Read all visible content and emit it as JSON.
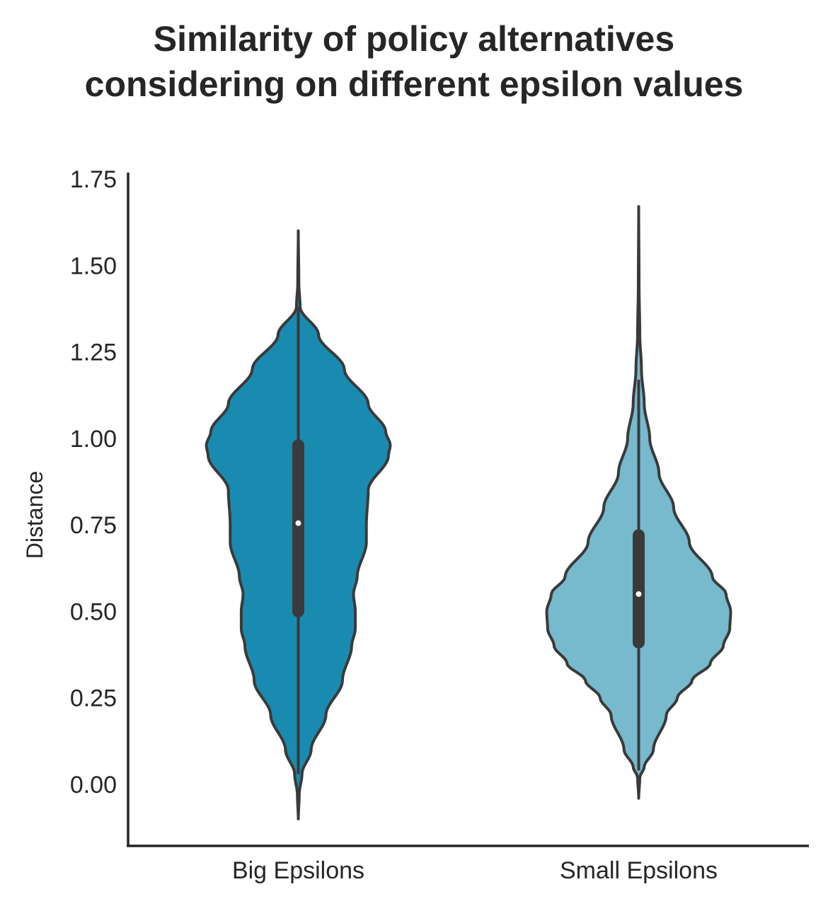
{
  "chart_data": {
    "type": "violin",
    "title_lines": [
      "Similarity of policy alternatives",
      "considering on different epsilon values"
    ],
    "xlabel": "",
    "ylabel": "Distance",
    "ylim": [
      -0.18,
      1.75
    ],
    "yticks": [
      0.0,
      0.25,
      0.5,
      0.75,
      1.0,
      1.25,
      1.5,
      1.75
    ],
    "ytick_labels": [
      "0.00",
      "0.25",
      "0.50",
      "0.75",
      "1.00",
      "1.25",
      "1.50",
      "1.75"
    ],
    "categories": [
      "Big Epsilons",
      "Small Epsilons"
    ],
    "grid": false,
    "series": [
      {
        "name": "Big Epsilons",
        "color": "#1a8bb0",
        "median": 0.755,
        "q1": 0.5,
        "q3": 0.98,
        "whisker_low": 0.03,
        "whisker_high": 1.38,
        "density_range": [
          -0.1,
          1.6
        ],
        "density_profile": [
          [
            -0.1,
            0.0
          ],
          [
            -0.03,
            0.01
          ],
          [
            0.03,
            0.04
          ],
          [
            0.1,
            0.14
          ],
          [
            0.2,
            0.3
          ],
          [
            0.3,
            0.48
          ],
          [
            0.4,
            0.58
          ],
          [
            0.45,
            0.62
          ],
          [
            0.5,
            0.62
          ],
          [
            0.55,
            0.6
          ],
          [
            0.6,
            0.64
          ],
          [
            0.7,
            0.74
          ],
          [
            0.75,
            0.74
          ],
          [
            0.85,
            0.76
          ],
          [
            0.95,
            0.98
          ],
          [
            0.98,
            1.0
          ],
          [
            1.02,
            0.95
          ],
          [
            1.1,
            0.76
          ],
          [
            1.2,
            0.5
          ],
          [
            1.3,
            0.22
          ],
          [
            1.38,
            0.02
          ],
          [
            1.45,
            0.006
          ],
          [
            1.6,
            0.0
          ]
        ]
      },
      {
        "name": "Small Epsilons",
        "color": "#77b9cd",
        "median": 0.55,
        "q1": 0.41,
        "q3": 0.72,
        "whisker_low": 0.04,
        "whisker_high": 1.17,
        "density_range": [
          -0.04,
          1.67
        ],
        "density_profile": [
          [
            -0.04,
            0.0
          ],
          [
            0.02,
            0.012
          ],
          [
            0.05,
            0.06
          ],
          [
            0.1,
            0.16
          ],
          [
            0.2,
            0.3
          ],
          [
            0.25,
            0.42
          ],
          [
            0.3,
            0.58
          ],
          [
            0.35,
            0.78
          ],
          [
            0.4,
            0.92
          ],
          [
            0.45,
            0.99
          ],
          [
            0.5,
            1.0
          ],
          [
            0.55,
            0.95
          ],
          [
            0.6,
            0.8
          ],
          [
            0.7,
            0.55
          ],
          [
            0.8,
            0.38
          ],
          [
            0.9,
            0.22
          ],
          [
            1.0,
            0.12
          ],
          [
            1.1,
            0.06
          ],
          [
            1.2,
            0.03
          ],
          [
            1.3,
            0.012
          ],
          [
            1.45,
            0.004
          ],
          [
            1.67,
            0.0
          ]
        ]
      }
    ]
  }
}
